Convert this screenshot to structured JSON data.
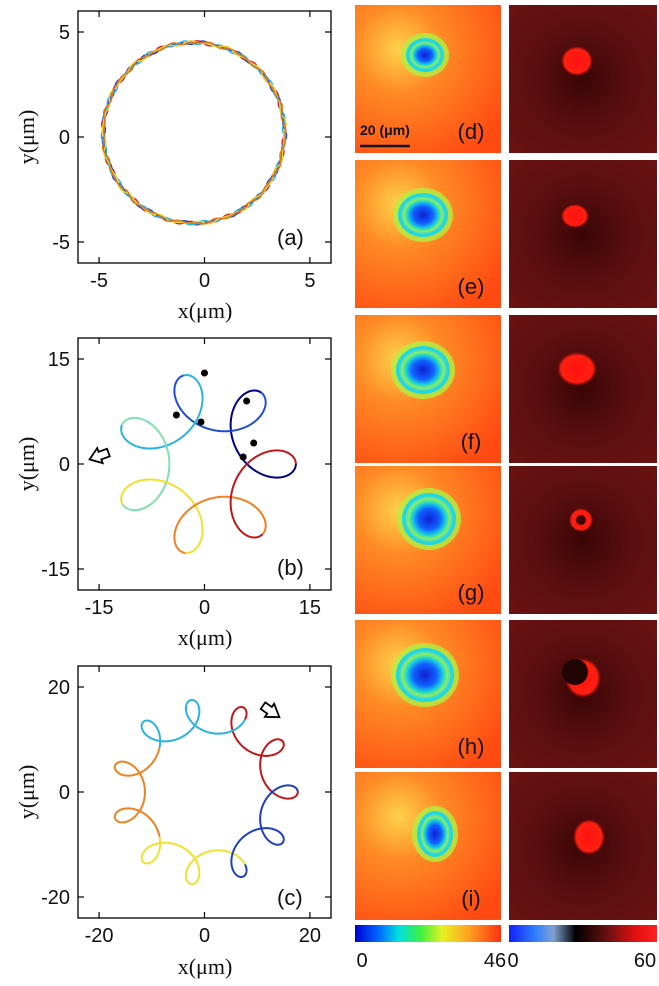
{
  "figure": {
    "panels": {
      "a": "(a)",
      "b": "(b)",
      "c": "(c)",
      "d": "(d)",
      "e": "(e)",
      "f": "(f)",
      "g": "(g)",
      "h": "(h)",
      "i": "(i)"
    },
    "xlabel": "x(μm)",
    "ylabel": "y(μm)",
    "scale_bar": "20 (μm)",
    "colorbar_left": {
      "min": "0",
      "max": "46"
    },
    "colorbar_right": {
      "min": "0",
      "max": "60"
    },
    "colors": {
      "field_bg": "#ff4d12",
      "core": "#1030ff",
      "dark_bg": "#5a0c0c",
      "bright": "#ff1515"
    }
  },
  "chart_data": [
    {
      "type": "line",
      "panel": "a",
      "xlabel": "x(μm)",
      "ylabel": "y(μm)",
      "xlim": [
        -6,
        6
      ],
      "ylim": [
        -6,
        6
      ],
      "xticks": [
        -5,
        0,
        5
      ],
      "yticks": [
        -5,
        0,
        5
      ],
      "trajectory": {
        "kind": "circle",
        "center": [
          -0.5,
          0.2
        ],
        "radius": 4.3
      },
      "series": [
        {
          "color": "#d62020"
        },
        {
          "color": "#1f4fcf"
        },
        {
          "color": "#2ab3e0"
        },
        {
          "color": "#f0d020"
        },
        {
          "color": "#e07818"
        }
      ]
    },
    {
      "type": "line",
      "panel": "b",
      "xlabel": "x(μm)",
      "ylabel": "y(μm)",
      "xlim": [
        -18,
        18
      ],
      "ylim": [
        -18,
        18
      ],
      "xticks": [
        -15,
        0,
        15
      ],
      "yticks": [
        -15,
        0,
        15
      ],
      "trajectory": {
        "kind": "epicycle",
        "R": 9,
        "r": 4,
        "ratio": -6,
        "turns": 1
      },
      "markers": [
        [
          0,
          13
        ],
        [
          -4,
          7
        ],
        [
          -0.5,
          6
        ],
        [
          6,
          9
        ],
        [
          7,
          3
        ],
        [
          5.5,
          1
        ]
      ],
      "series": [
        {
          "color": "#000080"
        },
        {
          "color": "#1f4fcf"
        },
        {
          "color": "#2ab3e0"
        },
        {
          "color": "#7fe0b0"
        },
        {
          "color": "#f0e030"
        },
        {
          "color": "#f08020"
        },
        {
          "color": "#c01818"
        }
      ]
    },
    {
      "type": "line",
      "panel": "c",
      "xlabel": "x(μm)",
      "ylabel": "y(μm)",
      "xlim": [
        -24,
        24
      ],
      "ylim": [
        -24,
        24
      ],
      "xticks": [
        -20,
        0,
        20
      ],
      "yticks": [
        -20,
        0,
        20
      ],
      "trajectory": {
        "kind": "epicycle",
        "R": 14.5,
        "r": 3.2,
        "ratio": -10,
        "turns": 1
      },
      "series": [
        {
          "color": "#c01818"
        },
        {
          "color": "#2ab3e0"
        },
        {
          "color": "#f08020"
        },
        {
          "color": "#f0e030"
        },
        {
          "color": "#1f3fc0"
        }
      ]
    }
  ]
}
